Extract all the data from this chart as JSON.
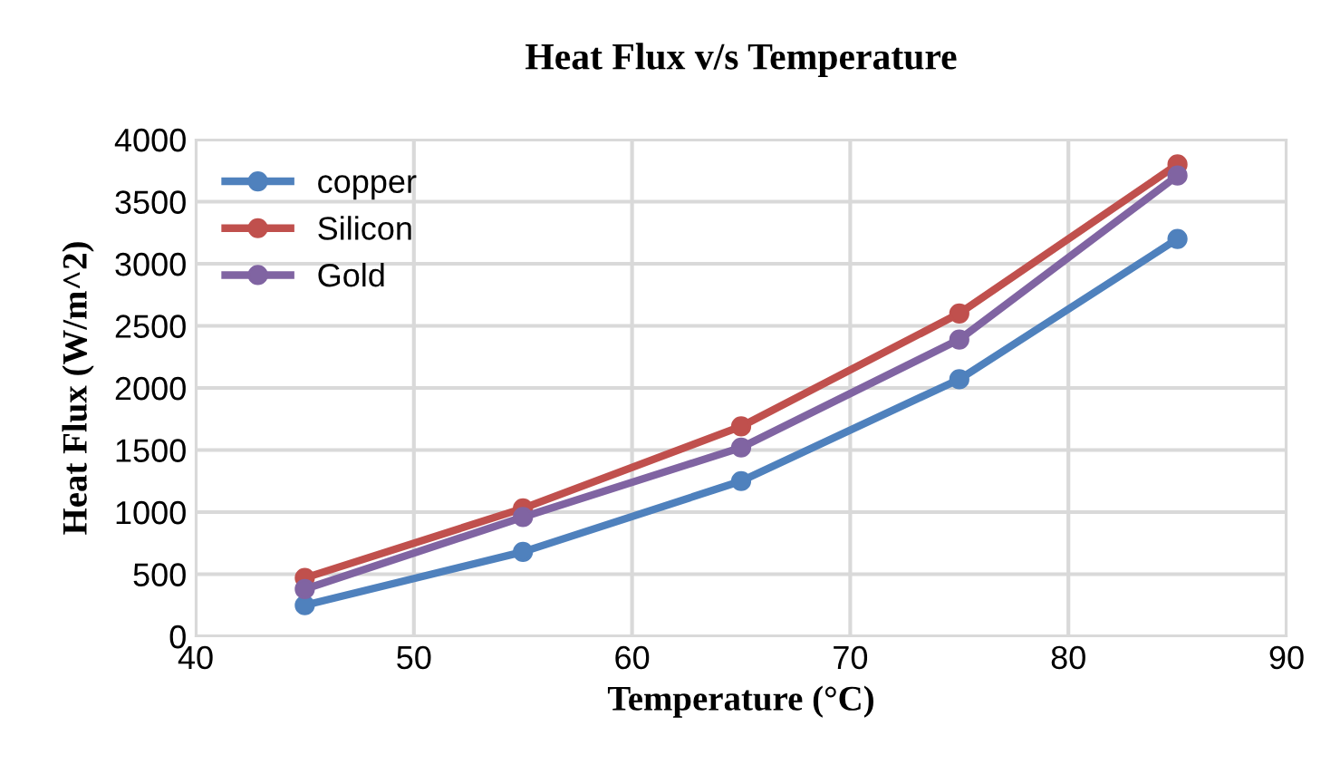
{
  "chart_data": {
    "type": "line",
    "title": "Heat Flux v/s Temperature",
    "xlabel": "Temperature (°C)",
    "ylabel": "Heat Flux (W/m^2)",
    "x": [
      45,
      55,
      65,
      75,
      85
    ],
    "series": [
      {
        "name": "copper",
        "color": "#4f81bd",
        "values": [
          250,
          680,
          1250,
          2070,
          3200
        ]
      },
      {
        "name": "Silicon",
        "color": "#c0504d",
        "values": [
          470,
          1030,
          1690,
          2600,
          3800
        ]
      },
      {
        "name": "Gold",
        "color": "#8064a2",
        "values": [
          380,
          960,
          1520,
          2390,
          3710
        ]
      }
    ],
    "xlim": [
      40,
      90
    ],
    "xticks": [
      40,
      50,
      60,
      70,
      80,
      90
    ],
    "ylim": [
      0,
      4000
    ],
    "yticks": [
      0,
      500,
      1000,
      1500,
      2000,
      2500,
      3000,
      3500,
      4000
    ],
    "grid": true,
    "legend": "top left",
    "marker": "circle",
    "line_style": "solid"
  }
}
